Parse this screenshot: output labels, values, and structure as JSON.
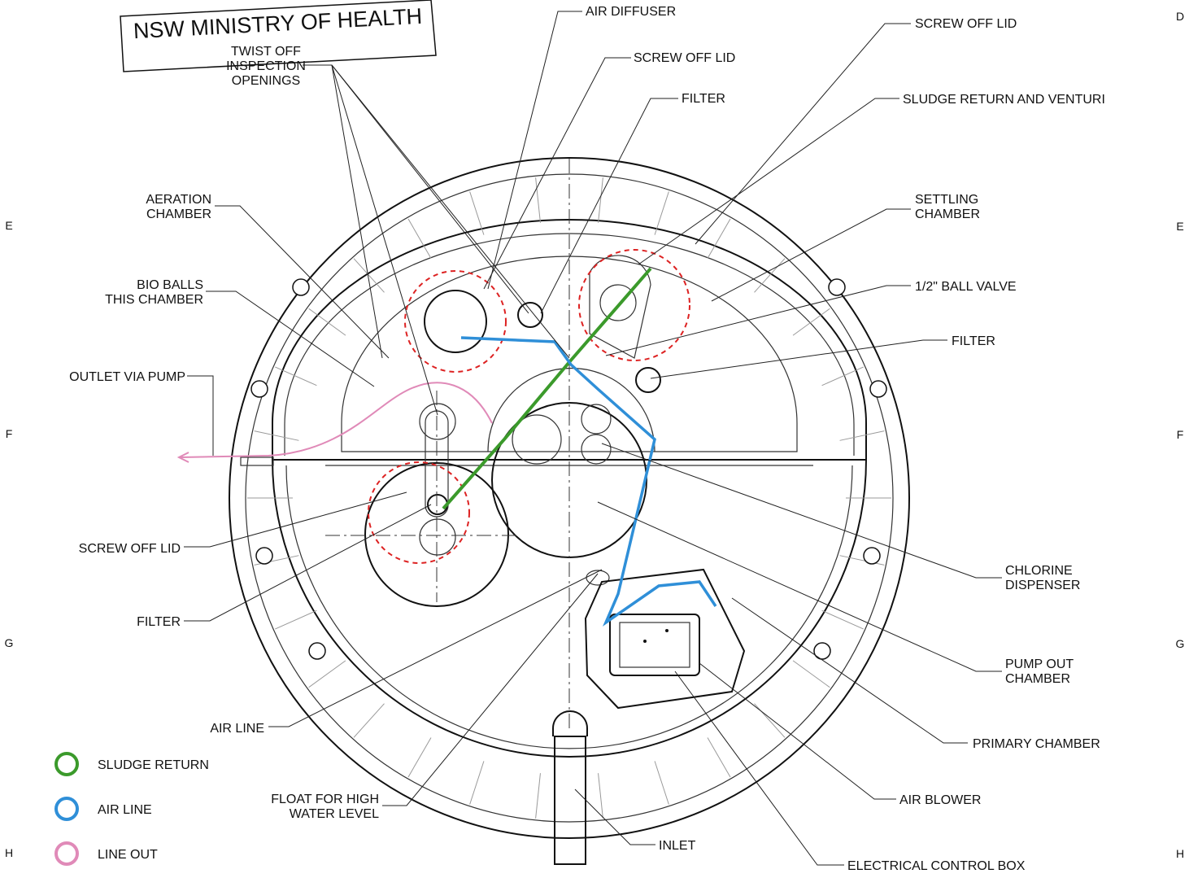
{
  "stamp": "NSW MINISTRY OF HEALTH",
  "callouts": [
    {
      "lines": [
        "TWIST OFF",
        "INSPECTION",
        "OPENINGS"
      ]
    },
    {
      "lines": [
        "AIR DIFFUSER"
      ]
    },
    {
      "lines": [
        "SCREW OFF LID"
      ]
    },
    {
      "lines": [
        "FILTER"
      ]
    },
    {
      "lines": [
        "SCREW OFF LID"
      ]
    },
    {
      "lines": [
        "SLUDGE RETURN AND VENTURI"
      ]
    },
    {
      "lines": [
        "AERATION",
        "CHAMBER"
      ]
    },
    {
      "lines": [
        "SETTLING",
        "CHAMBER"
      ]
    },
    {
      "lines": [
        "BIO BALLS",
        "THIS CHAMBER"
      ]
    },
    {
      "lines": [
        "1/2\" BALL VALVE"
      ]
    },
    {
      "lines": [
        "FILTER"
      ]
    },
    {
      "lines": [
        "OUTLET VIA PUMP"
      ]
    },
    {
      "lines": [
        "SCREW OFF LID"
      ]
    },
    {
      "lines": [
        "CHLORINE",
        "DISPENSER"
      ]
    },
    {
      "lines": [
        "FILTER"
      ]
    },
    {
      "lines": [
        "PUMP OUT",
        "CHAMBER"
      ]
    },
    {
      "lines": [
        "AIR LINE"
      ]
    },
    {
      "lines": [
        "PRIMARY CHAMBER"
      ]
    },
    {
      "lines": [
        "FLOAT FOR HIGH",
        "WATER LEVEL"
      ]
    },
    {
      "lines": [
        "AIR BLOWER"
      ]
    },
    {
      "lines": [
        "INLET"
      ]
    },
    {
      "lines": [
        "ELECTRICAL CONTROL BOX"
      ]
    }
  ],
  "legend": [
    {
      "label": "SLUDGE RETURN",
      "color": "#3b9a2b"
    },
    {
      "label": "AIR LINE",
      "color": "#2f8fd8"
    },
    {
      "label": "LINE OUT",
      "color": "#e08ab8"
    }
  ],
  "margin_left": [
    "E",
    "F",
    "G",
    "H"
  ],
  "margin_right": [
    "D",
    "E",
    "F",
    "G",
    "H"
  ]
}
